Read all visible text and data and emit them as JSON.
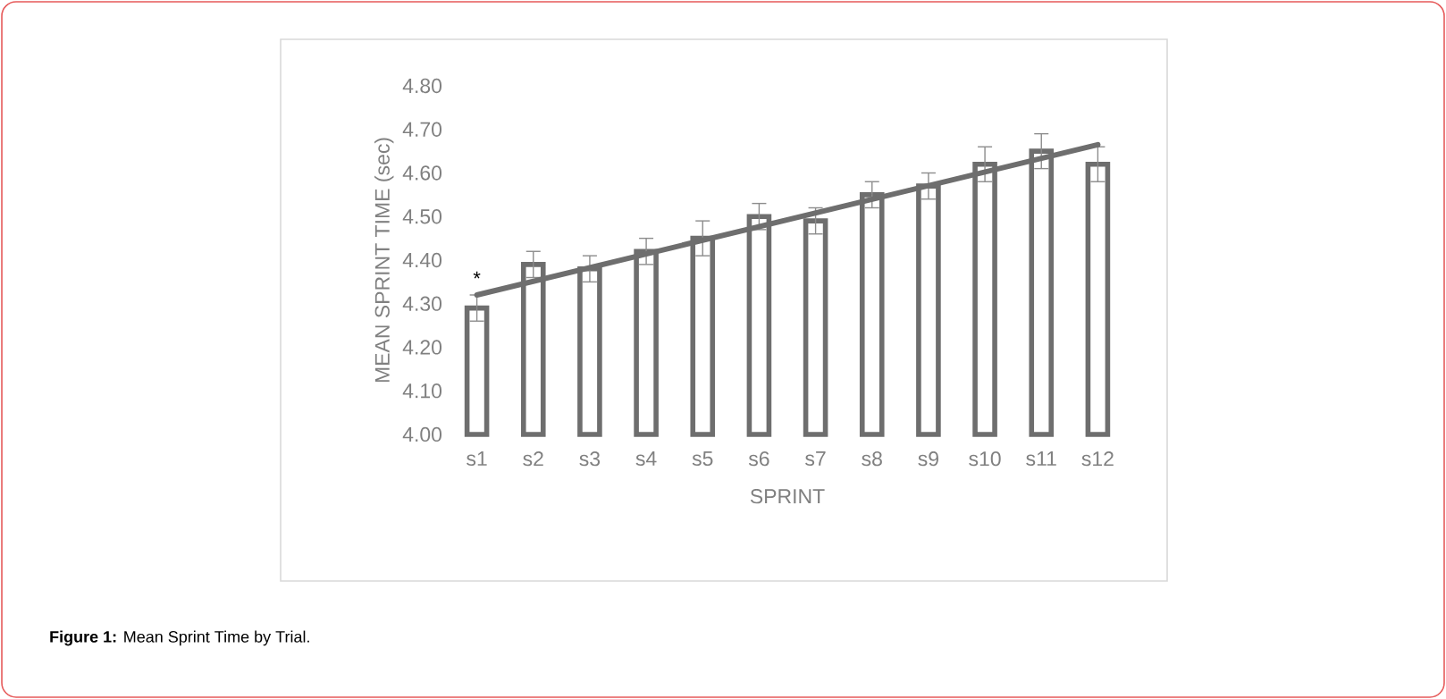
{
  "chart_data": {
    "type": "bar",
    "xlabel": "SPRINT",
    "ylabel": "MEAN SPRINT TIME (sec)",
    "categories": [
      "s1",
      "s2",
      "s3",
      "s4",
      "s5",
      "s6",
      "s7",
      "s8",
      "s9",
      "s10",
      "s11",
      "s12"
    ],
    "series": [
      {
        "color": "#6e6e6e",
        "values": [
          4.29,
          4.39,
          4.38,
          4.42,
          4.45,
          4.5,
          4.49,
          4.55,
          4.57,
          4.62,
          4.65,
          4.62
        ],
        "errors": [
          0.03,
          0.03,
          0.03,
          0.03,
          0.04,
          0.03,
          0.03,
          0.03,
          0.03,
          0.04,
          0.04,
          0.04
        ]
      },
      {
        "type": "line",
        "color": "#6e6e6e",
        "x": [
          "s1",
          "s12"
        ],
        "values": [
          4.32,
          4.665
        ]
      }
    ],
    "ylim": [
      4.0,
      4.8
    ],
    "yticks": [
      {
        "value": 4.0,
        "label": "4.00"
      },
      {
        "value": 4.1,
        "label": "4.10"
      },
      {
        "value": 4.2,
        "label": "4.20"
      },
      {
        "value": 4.3,
        "label": "4.30"
      },
      {
        "value": 4.4,
        "label": "4.40"
      },
      {
        "value": 4.5,
        "label": "4.50"
      },
      {
        "value": 4.6,
        "label": "4.60"
      },
      {
        "value": 4.7,
        "label": "4.70"
      },
      {
        "value": 4.8,
        "label": "4.80"
      }
    ],
    "grid": false,
    "annotations": [
      "*",
      "**Figure 1:** Mean Sprint Time by Trial."
    ]
  }
}
